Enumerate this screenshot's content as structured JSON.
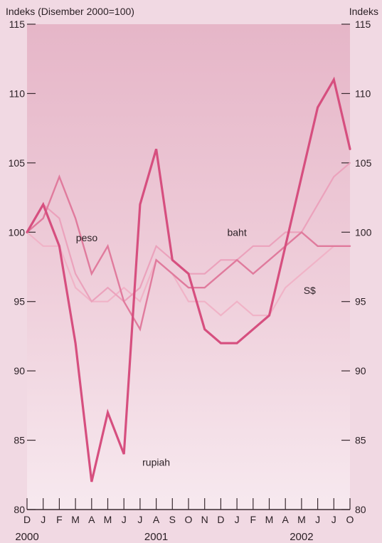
{
  "chart_data": {
    "type": "line",
    "left_axis_title": "Indeks (Disember 2000=100)",
    "right_axis_title": "Indeks",
    "ylim": [
      80,
      115
    ],
    "yticks": [
      80,
      85,
      90,
      95,
      100,
      105,
      110,
      115
    ],
    "months": [
      "D",
      "J",
      "F",
      "M",
      "A",
      "M",
      "J",
      "J",
      "A",
      "S",
      "O",
      "N",
      "D",
      "J",
      "F",
      "M",
      "A",
      "M",
      "J",
      "J",
      "O"
    ],
    "year_labels": [
      {
        "label": "2000",
        "month_index": 0
      },
      {
        "label": "2001",
        "month_index": 8
      },
      {
        "label": "2002",
        "month_index": 17
      }
    ],
    "grid": false,
    "series": [
      {
        "name": "rupiah",
        "color": "#d64f7f",
        "width": 3.2,
        "values": [
          100,
          102,
          99,
          92,
          82,
          87,
          84,
          102,
          106,
          98,
          97,
          93,
          92,
          92,
          93,
          94,
          99,
          104,
          109,
          111,
          106
        ]
      },
      {
        "name": "peso",
        "color": "#e07b9d",
        "width": 2.4,
        "values": [
          100,
          101,
          104,
          101,
          97,
          99,
          95,
          93,
          98,
          97,
          96,
          96,
          97,
          98,
          97,
          98,
          99,
          100,
          99,
          99,
          99
        ]
      },
      {
        "name": "baht",
        "color": "#eba2bc",
        "width": 2.2,
        "values": [
          100,
          102,
          101,
          97,
          95,
          96,
          95,
          96,
          99,
          98,
          97,
          97,
          98,
          98,
          99,
          99,
          100,
          100,
          102,
          104,
          105
        ]
      },
      {
        "name": "S$",
        "color": "#f0b3c7",
        "width": 2.2,
        "values": [
          100,
          99,
          99,
          96,
          95,
          95,
          96,
          95,
          98,
          97,
          95,
          95,
          94,
          95,
          94,
          94,
          96,
          97,
          98,
          99,
          99
        ]
      }
    ],
    "annotations": [
      {
        "text": "peso",
        "series": "peso"
      },
      {
        "text": "baht",
        "series": "baht"
      },
      {
        "text": "S$",
        "series": "S$"
      },
      {
        "text": "rupiah",
        "series": "rupiah"
      }
    ]
  }
}
